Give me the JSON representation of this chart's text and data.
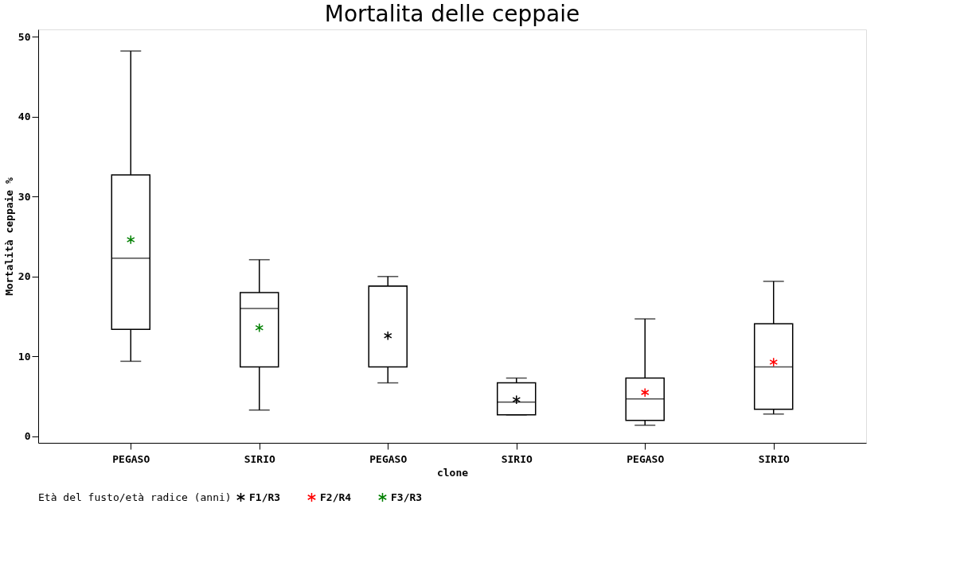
{
  "chart_data": {
    "type": "box",
    "title": "Mortalita delle ceppaie",
    "xlabel": "clone",
    "ylabel": "Mortalità ceppaie %",
    "legend_title": "Età del fusto/età radice (anni)",
    "categories": [
      "PEGASO",
      "SIRIO",
      "PEGASO",
      "SIRIO",
      "PEGASO",
      "SIRIO"
    ],
    "boxes": [
      {
        "low": 9.4,
        "q1": 13.4,
        "median": 22.3,
        "q3": 32.7,
        "high": 48.2
      },
      {
        "low": 3.3,
        "q1": 8.7,
        "median": 16.0,
        "q3": 18.0,
        "high": 22.1
      },
      {
        "low": 6.7,
        "q1": 8.7,
        "median": 18.8,
        "q3": 18.8,
        "high": 20.0
      },
      {
        "low": 2.7,
        "q1": 2.7,
        "median": 4.3,
        "q3": 6.7,
        "high": 7.3
      },
      {
        "low": 1.4,
        "q1": 2.0,
        "median": 4.7,
        "q3": 7.3,
        "high": 14.7
      },
      {
        "low": 2.8,
        "q1": 3.4,
        "median": 8.7,
        "q3": 14.1,
        "high": 19.4
      }
    ],
    "series": [
      {
        "name": "F1/R3",
        "type": "scatter",
        "color": "#000000",
        "values": [
          null,
          null,
          12.6,
          4.6,
          null,
          null
        ]
      },
      {
        "name": "F2/R4",
        "type": "scatter",
        "color": "#ff0000",
        "values": [
          null,
          null,
          null,
          null,
          5.5,
          9.3
        ]
      },
      {
        "name": "F3/R3",
        "type": "scatter",
        "color": "#008000",
        "values": [
          24.6,
          13.6,
          null,
          null,
          null,
          null
        ]
      }
    ],
    "ylim": [
      -0.8,
      50.9
    ],
    "yticks": [
      0,
      10,
      20,
      30,
      40,
      50
    ],
    "grid": false,
    "legend": "bottom",
    "marker": "cross"
  }
}
